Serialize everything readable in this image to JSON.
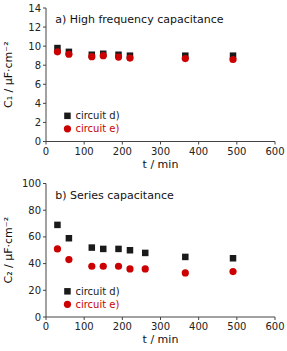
{
  "chart_data": [
    {
      "type": "scatter",
      "title": "a) High frequency capacitance",
      "x_label": "t / min",
      "y_label": "C₁ / μF·cm⁻²",
      "x": [
        30,
        60,
        120,
        150,
        190,
        220,
        365,
        490
      ],
      "series": [
        {
          "name": "circuit d)",
          "color": "#1a1a1a",
          "marker": "square",
          "values": [
            9.8,
            9.4,
            9.1,
            9.2,
            9.1,
            9.0,
            9.0,
            9.0
          ]
        },
        {
          "name": "circuit e)",
          "color": "#cc0000",
          "marker": "circle",
          "values": [
            9.4,
            9.15,
            8.9,
            9.0,
            8.85,
            8.75,
            8.7,
            8.6
          ]
        }
      ],
      "xlim": [
        0,
        600
      ],
      "xticks": [
        0,
        100,
        200,
        300,
        400,
        500,
        600
      ],
      "ylim": [
        0,
        14
      ],
      "yticks": [
        0,
        2,
        4,
        6,
        8,
        10,
        12,
        14
      ],
      "grid": false,
      "legend": "lower left"
    },
    {
      "type": "scatter",
      "title": "b) Series capacitance",
      "x_label": "t / min",
      "y_label": "C₂ / μF·cm⁻²",
      "x": [
        30,
        60,
        120,
        150,
        190,
        220,
        260,
        365,
        490
      ],
      "series": [
        {
          "name": "circuit d)",
          "color": "#1a1a1a",
          "marker": "square",
          "values": [
            69,
            59,
            52,
            51,
            51,
            50,
            48,
            45,
            44
          ]
        },
        {
          "name": "circuit e)",
          "color": "#cc0000",
          "marker": "circle",
          "values": [
            51,
            43,
            38,
            38,
            38,
            36,
            36,
            33,
            34
          ]
        }
      ],
      "xlim": [
        0,
        600
      ],
      "xticks": [
        0,
        100,
        200,
        300,
        400,
        500,
        600
      ],
      "ylim": [
        0,
        100
      ],
      "yticks": [
        0,
        20,
        40,
        60,
        80,
        100
      ],
      "grid": false,
      "legend": "lower left"
    }
  ]
}
